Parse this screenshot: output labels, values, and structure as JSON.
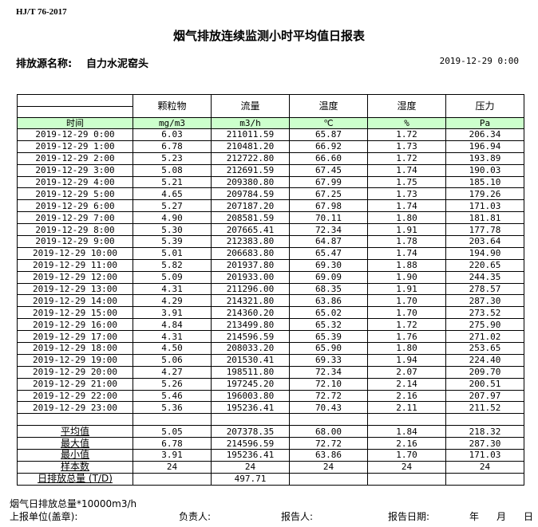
{
  "standard": "HJ/T  76-2017",
  "title": "烟气排放连续监测小时平均值日报表",
  "source_label": "排放源名称:",
  "source_name": "自力水泥窑头",
  "report_datetime": "2019-12-29 0:00",
  "columns": [
    {
      "name": "颗粒物",
      "unit": "mg/m3"
    },
    {
      "name": "流量",
      "unit": "m3/h"
    },
    {
      "name": "温度",
      "unit": "℃"
    },
    {
      "name": "湿度",
      "unit": "%"
    },
    {
      "name": "压力",
      "unit": "Pa"
    }
  ],
  "time_label": "时间",
  "header_color": "#ccffcc",
  "rows": [
    [
      "2019-12-29 0:00",
      "6.03",
      "211011.59",
      "65.87",
      "1.72",
      "206.34"
    ],
    [
      "2019-12-29 1:00",
      "6.78",
      "210481.20",
      "66.92",
      "1.73",
      "196.94"
    ],
    [
      "2019-12-29 2:00",
      "5.23",
      "212722.80",
      "66.60",
      "1.72",
      "193.89"
    ],
    [
      "2019-12-29 3:00",
      "5.08",
      "212691.59",
      "67.45",
      "1.74",
      "190.03"
    ],
    [
      "2019-12-29 4:00",
      "5.21",
      "209380.80",
      "67.99",
      "1.75",
      "185.10"
    ],
    [
      "2019-12-29 5:00",
      "4.65",
      "209784.59",
      "67.25",
      "1.73",
      "179.26"
    ],
    [
      "2019-12-29 6:00",
      "5.27",
      "207187.20",
      "67.98",
      "1.74",
      "171.03"
    ],
    [
      "2019-12-29 7:00",
      "4.90",
      "208581.59",
      "70.11",
      "1.80",
      "181.81"
    ],
    [
      "2019-12-29 8:00",
      "5.30",
      "207665.41",
      "72.34",
      "1.91",
      "177.78"
    ],
    [
      "2019-12-29 9:00",
      "5.39",
      "212383.80",
      "64.87",
      "1.78",
      "203.64"
    ],
    [
      "2019-12-29 10:00",
      "5.01",
      "206683.80",
      "65.47",
      "1.74",
      "194.90"
    ],
    [
      "2019-12-29 11:00",
      "5.82",
      "201937.80",
      "69.30",
      "1.88",
      "220.65"
    ],
    [
      "2019-12-29 12:00",
      "5.09",
      "201933.00",
      "69.09",
      "1.90",
      "244.35"
    ],
    [
      "2019-12-29 13:00",
      "4.31",
      "211296.00",
      "68.35",
      "1.91",
      "278.57"
    ],
    [
      "2019-12-29 14:00",
      "4.29",
      "214321.80",
      "63.86",
      "1.70",
      "287.30"
    ],
    [
      "2019-12-29 15:00",
      "3.91",
      "214360.20",
      "65.02",
      "1.70",
      "273.52"
    ],
    [
      "2019-12-29 16:00",
      "4.84",
      "213499.80",
      "65.32",
      "1.72",
      "275.90"
    ],
    [
      "2019-12-29 17:00",
      "4.31",
      "214596.59",
      "65.39",
      "1.76",
      "271.02"
    ],
    [
      "2019-12-29 18:00",
      "4.50",
      "208033.20",
      "65.90",
      "1.80",
      "253.65"
    ],
    [
      "2019-12-29 19:00",
      "5.06",
      "201530.41",
      "69.33",
      "1.94",
      "224.40"
    ],
    [
      "2019-12-29 20:00",
      "4.27",
      "198511.80",
      "72.34",
      "2.07",
      "209.70"
    ],
    [
      "2019-12-29 21:00",
      "5.26",
      "197245.20",
      "72.10",
      "2.14",
      "200.51"
    ],
    [
      "2019-12-29 22:00",
      "5.46",
      "196003.80",
      "72.72",
      "2.16",
      "207.97"
    ],
    [
      "2019-12-29 23:00",
      "5.36",
      "195236.41",
      "70.43",
      "2.11",
      "211.52"
    ]
  ],
  "stats": [
    [
      "平均值",
      "5.05",
      "207378.35",
      "68.00",
      "1.84",
      "218.32"
    ],
    [
      "最大值",
      "6.78",
      "214596.59",
      "72.72",
      "2.16",
      "287.30"
    ],
    [
      "最小值",
      "3.91",
      "195236.41",
      "63.86",
      "1.70",
      "171.03"
    ],
    [
      "样本数",
      "24",
      "24",
      "24",
      "24",
      "24"
    ]
  ],
  "daily_total": {
    "label": "日排放总量 (T/D)",
    "value": "497.71"
  },
  "footer": {
    "note": "烟气日排放总量*10000m3/h",
    "unit_label": "上报单位(盖章):",
    "manager_label": "负责人:",
    "reporter_label": "报告人:",
    "date_label": "报告日期:",
    "year": "年",
    "month": "月",
    "day": "日"
  }
}
